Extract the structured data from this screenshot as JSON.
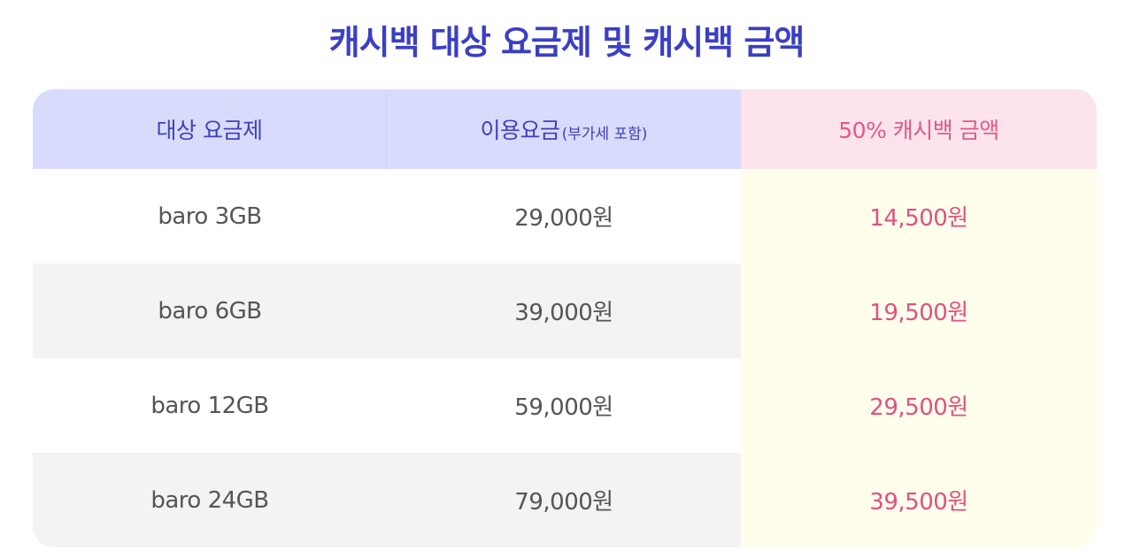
{
  "title": "캐시백 대상 요금제 및 캐시백 금액",
  "table": {
    "headers": {
      "plan": "대상 요금제",
      "fee": "이용요금",
      "fee_note": "(부가세 포함)",
      "cashback": "50% 캐시백 금액"
    },
    "rows": [
      {
        "plan": "baro 3GB",
        "fee": "29,000원",
        "cashback": "14,500원"
      },
      {
        "plan": "baro 6GB",
        "fee": "39,000원",
        "cashback": "19,500원"
      },
      {
        "plan": "baro 12GB",
        "fee": "59,000원",
        "cashback": "29,500원"
      },
      {
        "plan": "baro 24GB",
        "fee": "79,000원",
        "cashback": "39,500원"
      }
    ]
  },
  "colors": {
    "title": "#3a3fc4",
    "header_bg": "#d9dbfd",
    "cashback_header_bg": "#fde3ec",
    "cashback_col_bg": "#fffeed",
    "cashback_text": "#e0517e",
    "alt_row_bg": "#f3f3f3"
  }
}
